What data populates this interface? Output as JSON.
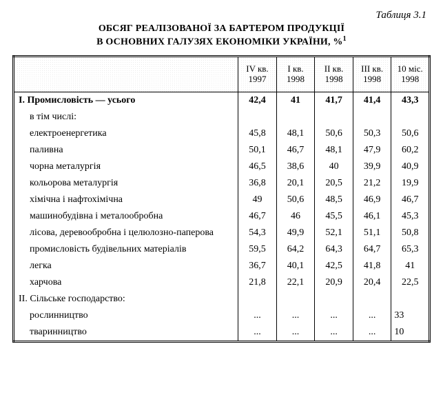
{
  "tableLabel": "Таблиця 3.1",
  "titleLine1": "ОБСЯГ РЕАЛІЗОВАНОЇ ЗА БАРТЕРОМ ПРОДУКЦІЇ",
  "titleLine2": "В ОСНОВНИХ ГАЛУЗЯХ ЕКОНОМІКИ УКРАЇНИ, %",
  "footnoteMark": "1",
  "columns": [
    "",
    "IV кв. 1997",
    "I кв. 1998",
    "II кв. 1998",
    "III кв. 1998",
    "10 міс. 1998"
  ],
  "rows": [
    {
      "label": "I. Промисловість — усього",
      "bold": true,
      "indent": false,
      "vals": [
        "42,4",
        "41",
        "41,7",
        "41,4",
        "43,3"
      ],
      "lastLeft": false
    },
    {
      "label": "в тім числі:",
      "bold": false,
      "indent": true,
      "vals": [
        "",
        "",
        "",
        "",
        ""
      ],
      "lastLeft": false
    },
    {
      "label": "електроенергетика",
      "bold": false,
      "indent": true,
      "vals": [
        "45,8",
        "48,1",
        "50,6",
        "50,3",
        "50,6"
      ],
      "lastLeft": false
    },
    {
      "label": "паливна",
      "bold": false,
      "indent": true,
      "vals": [
        "50,1",
        "46,7",
        "48,1",
        "47,9",
        "60,2"
      ],
      "lastLeft": false
    },
    {
      "label": "чорна металургія",
      "bold": false,
      "indent": true,
      "vals": [
        "46,5",
        "38,6",
        "40",
        "39,9",
        "40,9"
      ],
      "lastLeft": false
    },
    {
      "label": "кольорова металургія",
      "bold": false,
      "indent": true,
      "vals": [
        "36,8",
        "20,1",
        "20,5",
        "21,2",
        "19,9"
      ],
      "lastLeft": false
    },
    {
      "label": "хімічна і нафтохімічна",
      "bold": false,
      "indent": true,
      "vals": [
        "49",
        "50,6",
        "48,5",
        "46,9",
        "46,7"
      ],
      "lastLeft": false
    },
    {
      "label": "машинобудівна і металообробна",
      "bold": false,
      "indent": true,
      "vals": [
        "46,7",
        "46",
        "45,5",
        "46,1",
        "45,3"
      ],
      "lastLeft": false
    },
    {
      "label": "лісова, деревообробна і целюлозно-паперова",
      "bold": false,
      "indent": true,
      "twoLine": true,
      "vals": [
        "54,3",
        "49,9",
        "52,1",
        "51,1",
        "50,8"
      ],
      "lastLeft": false
    },
    {
      "label": "промисловість будівельних матеріалів",
      "bold": false,
      "indent": true,
      "vals": [
        "59,5",
        "64,2",
        "64,3",
        "64,7",
        "65,3"
      ],
      "lastLeft": false
    },
    {
      "label": "легка",
      "bold": false,
      "indent": true,
      "vals": [
        "36,7",
        "40,1",
        "42,5",
        "41,8",
        "41"
      ],
      "lastLeft": false
    },
    {
      "label": "харчова",
      "bold": false,
      "indent": true,
      "vals": [
        "21,8",
        "22,1",
        "20,9",
        "20,4",
        "22,5"
      ],
      "lastLeft": false
    },
    {
      "label": "II. Сільське господарство:",
      "bold": false,
      "indent": false,
      "vals": [
        "",
        "",
        "",
        "",
        ""
      ],
      "lastLeft": false
    },
    {
      "label": "рослинництво",
      "bold": false,
      "indent": true,
      "vals": [
        "...",
        "...",
        "...",
        "...",
        "33"
      ],
      "lastLeft": true
    },
    {
      "label": "тваринництво",
      "bold": false,
      "indent": true,
      "vals": [
        "...",
        "...",
        "...",
        "...",
        "10"
      ],
      "lastLeft": true
    }
  ]
}
